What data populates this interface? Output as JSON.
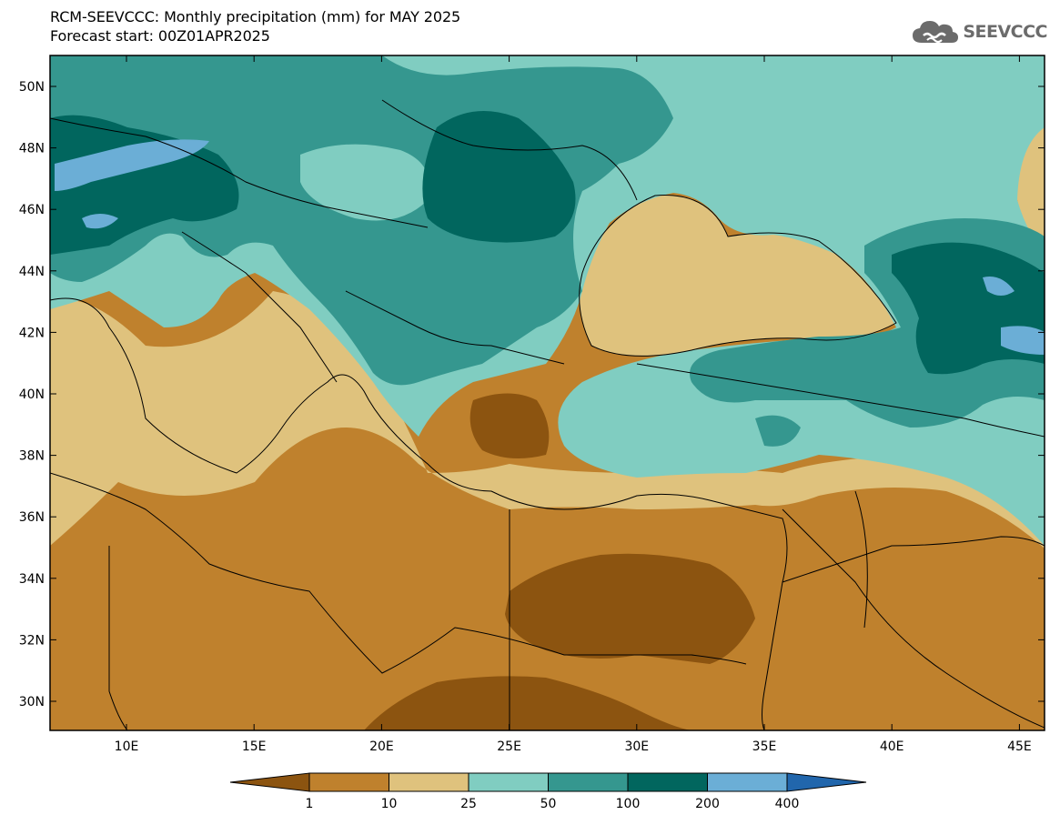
{
  "title": {
    "line1": "RCM-SEEVCCC: Monthly precipitation (mm) for MAY 2025",
    "line2": "Forecast start: 00Z01APR2025"
  },
  "logo": {
    "icon": "cloud-logo-icon",
    "text": "SEEVCCC"
  },
  "map": {
    "lat_labels": [
      "50N",
      "48N",
      "46N",
      "44N",
      "42N",
      "40N",
      "38N",
      "36N",
      "34N",
      "32N",
      "30N"
    ],
    "lon_labels": [
      "10E",
      "15E",
      "20E",
      "25E",
      "30E",
      "35E",
      "40E",
      "45E"
    ]
  },
  "colorbar": {
    "colors": [
      "#8c5410",
      "#bf812d",
      "#dfc27d",
      "#80cdc1",
      "#35978f",
      "#01665e",
      "#6baed6",
      "#2166ac"
    ],
    "labels": [
      "1",
      "10",
      "25",
      "50",
      "100",
      "200",
      "400"
    ]
  }
}
